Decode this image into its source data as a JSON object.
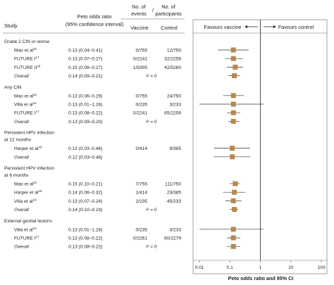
{
  "headers": {
    "study": "Study",
    "peto": [
      "Peto odds ratio",
      "(95% confidence interval)"
    ],
    "no_events": [
      "No. of",
      "events"
    ],
    "no_participants": [
      "No. of",
      "participants"
    ],
    "vaccine": "Vaccine",
    "control": "Control",
    "favours_vaccine": "Favours vaccine",
    "favours_control": "Favours control",
    "xlabel": "Peto odds ratio and 95% CI"
  },
  "colors": {
    "marker": "#b8864e",
    "line": "#333333",
    "panel_border": "#777777",
    "rule": "#666666"
  },
  "chart_data": {
    "type": "forest",
    "title": "",
    "xlabel": "Peto odds ratio and 95% CI",
    "xscale": "log",
    "xlim": [
      0.01,
      100
    ],
    "xticks": [
      0.01,
      0.1,
      1,
      10,
      100
    ],
    "xtick_labels": [
      "0.01",
      "0.1",
      "1",
      "10",
      "100"
    ],
    "reference_line": 1,
    "groups": [
      {
        "label": "Grade 2 CIN or worse",
        "rows": [
          {
            "study": "Mao et al",
            "sup": "21",
            "or_text": "0.13 (0.04–0.41)",
            "or": 0.13,
            "lo": 0.04,
            "hi": 0.41,
            "vaccine": "0/755",
            "control": "12/750"
          },
          {
            "study": "FUTURE I",
            "sup": "17",
            "or_text": "0.13 (0.07–0.27)",
            "or": 0.13,
            "lo": 0.07,
            "hi": 0.27,
            "vaccine": "0/2241",
            "control": "32/2258"
          },
          {
            "study": "FUTURE II",
            "sup": "16",
            "or_text": "0.15 (0.08–0.27)",
            "or": 0.15,
            "lo": 0.08,
            "hi": 0.27,
            "vaccine": "1/5305",
            "control": "42/5260"
          }
        ],
        "overall": {
          "label": "Overall",
          "or_text": "0.14 (0.09–0.21)",
          "or": 0.14,
          "lo": 0.09,
          "hi": 0.21,
          "i2": "I² = 0"
        }
      },
      {
        "label": "Any CIN",
        "rows": [
          {
            "study": "Mao et al",
            "sup": "21",
            "or_text": "0.13 (0.06–0.29)",
            "or": 0.13,
            "lo": 0.06,
            "hi": 0.29,
            "vaccine": "0/755",
            "control": "24/750"
          },
          {
            "study": "Villa et al",
            "sup": "24",
            "or_text": "0.13 (0.01–1.28)",
            "or": 0.13,
            "lo": 0.01,
            "hi": 1.28,
            "vaccine": "0/235",
            "control": "3/233"
          },
          {
            "study": "FUTURE I",
            "sup": "17",
            "or_text": "0.13 (0.08–0.22)",
            "or": 0.13,
            "lo": 0.08,
            "hi": 0.22,
            "vaccine": "0/2241",
            "control": "65/2258"
          }
        ],
        "overall": {
          "label": "Overall",
          "or_text": "0.13 (0.09–0.20)",
          "or": 0.13,
          "lo": 0.09,
          "hi": 0.2,
          "i2": "I² = 0"
        }
      },
      {
        "label": "Persistent HPV infection at 12 months",
        "label_lines": [
          "Persistent HPV infection",
          "at 12 months"
        ],
        "rows": [
          {
            "study": "Harper et al",
            "sup": "19",
            "or_text": "0.12 (0.03–0.46)",
            "or": 0.12,
            "lo": 0.03,
            "hi": 0.46,
            "vaccine": "0/414",
            "control": "9/385"
          }
        ],
        "overall": {
          "label": "Overall",
          "or_text": "0.12 (0.03–0.46)",
          "or": 0.12,
          "lo": 0.03,
          "hi": 0.46,
          "i2": ""
        }
      },
      {
        "label": "Persistent HPV infection at 6 months",
        "label_lines": [
          "Persistent HPV infection",
          "at 6 months"
        ],
        "rows": [
          {
            "study": "Mao et al",
            "sup": "21",
            "or_text": "0.15 (0.10–0.21)",
            "or": 0.15,
            "lo": 0.1,
            "hi": 0.21,
            "vaccine": "7/755",
            "control": "111/750"
          },
          {
            "study": "Harper et al",
            "sup": "19",
            "or_text": "0.14 (0.06–0.32)",
            "or": 0.14,
            "lo": 0.06,
            "hi": 0.32,
            "vaccine": "1/414",
            "control": "23/385"
          },
          {
            "study": "Villa et al",
            "sup": "24",
            "or_text": "0.13 (0.07–0.24)",
            "or": 0.13,
            "lo": 0.07,
            "hi": 0.24,
            "vaccine": "2/235",
            "control": "45/233"
          }
        ],
        "overall": {
          "label": "Overall",
          "or_text": "0.14 (0.10–0.19)",
          "or": 0.14,
          "lo": 0.1,
          "hi": 0.19,
          "i2": "I² = 0"
        }
      },
      {
        "label": "External genital lesions",
        "rows": [
          {
            "study": "Villa et al",
            "sup": "24",
            "or_text": "0.13 (0.01–1.28)",
            "or": 0.13,
            "lo": 0.01,
            "hi": 1.28,
            "vaccine": "0/235",
            "control": "3/233"
          },
          {
            "study": "FUTURE I",
            "sup": "17",
            "or_text": "0.13 (0.08–0.22)",
            "or": 0.13,
            "lo": 0.08,
            "hi": 0.22,
            "vaccine": "0/2261",
            "control": "60/2279"
          }
        ],
        "overall": {
          "label": "Overall",
          "or_text": "0.13 (0.08–0.22)",
          "or": 0.13,
          "lo": 0.08,
          "hi": 0.22,
          "i2": "I² = 0"
        }
      }
    ]
  }
}
